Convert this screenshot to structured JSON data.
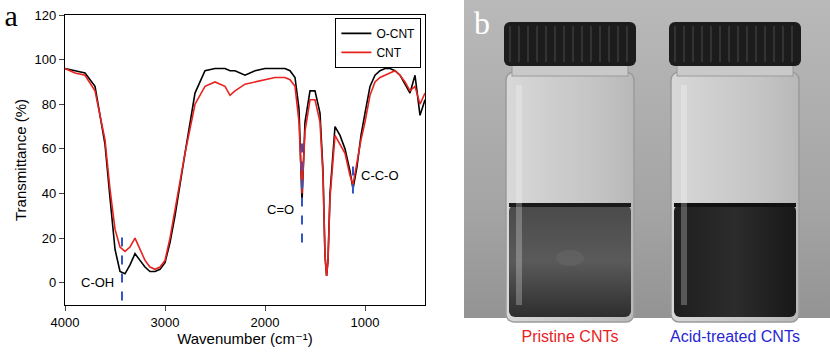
{
  "chart_data": {
    "type": "line",
    "title": "a",
    "x_label": "Wavenumber (cm⁻¹)",
    "y_label": "Transmittance (%)",
    "x": [
      4000,
      3900,
      3800,
      3700,
      3600,
      3550,
      3500,
      3450,
      3400,
      3350,
      3300,
      3250,
      3200,
      3150,
      3100,
      3050,
      3000,
      2950,
      2900,
      2800,
      2700,
      2600,
      2500,
      2400,
      2350,
      2300,
      2200,
      2100,
      2000,
      1900,
      1800,
      1750,
      1700,
      1660,
      1630,
      1600,
      1550,
      1500,
      1450,
      1420,
      1400,
      1384,
      1370,
      1350,
      1300,
      1250,
      1200,
      1150,
      1120,
      1080,
      1040,
      1000,
      950,
      900,
      850,
      800,
      750,
      700,
      650,
      600,
      550,
      500,
      450,
      400
    ],
    "series": [
      {
        "name": "O-CNT",
        "color": "#000000",
        "values": [
          96,
          95,
          94,
          88,
          62,
          38,
          15,
          5,
          4,
          8,
          13,
          10,
          7,
          5,
          5,
          6,
          9,
          18,
          30,
          58,
          85,
          95,
          96,
          96,
          95,
          95,
          93,
          95,
          96,
          96,
          96,
          95,
          92,
          78,
          36,
          72,
          86,
          86,
          76,
          50,
          12,
          3,
          10,
          40,
          70,
          66,
          60,
          50,
          42,
          52,
          66,
          76,
          88,
          93,
          95,
          96,
          96,
          95,
          93,
          89,
          85,
          93,
          75,
          82
        ]
      },
      {
        "name": "CNT",
        "color": "#e8231f",
        "values": [
          96,
          94,
          93,
          86,
          64,
          42,
          24,
          16,
          14,
          16,
          20,
          15,
          10,
          7,
          6,
          7,
          10,
          20,
          33,
          58,
          80,
          88,
          90,
          88,
          84,
          86,
          89,
          90,
          91,
          92,
          92,
          91,
          88,
          72,
          40,
          68,
          82,
          82,
          72,
          48,
          12,
          3,
          10,
          38,
          66,
          62,
          58,
          48,
          44,
          54,
          64,
          72,
          84,
          90,
          92,
          93,
          94,
          95,
          93,
          90,
          86,
          88,
          80,
          85
        ]
      }
    ],
    "xlim": [
      4000,
      400
    ],
    "xticks": [
      4000,
      3000,
      2000,
      1000
    ],
    "ylim": [
      -10,
      120
    ],
    "yticks": [
      0,
      20,
      40,
      60,
      80,
      100,
      120
    ],
    "legend": "top right",
    "annotations": [
      {
        "text": "C-OH",
        "x": 3430,
        "y": 0
      },
      {
        "text": "C=O",
        "x": 1630,
        "y": 33
      },
      {
        "text": "C-C-O",
        "x": 1120,
        "y": 48
      }
    ]
  },
  "photo": {
    "label": "b",
    "captions": [
      {
        "text": "Pristine CNTs",
        "color": "#e8231f"
      },
      {
        "text": "Acid-treated CNTs",
        "color": "#2727d4"
      }
    ]
  }
}
